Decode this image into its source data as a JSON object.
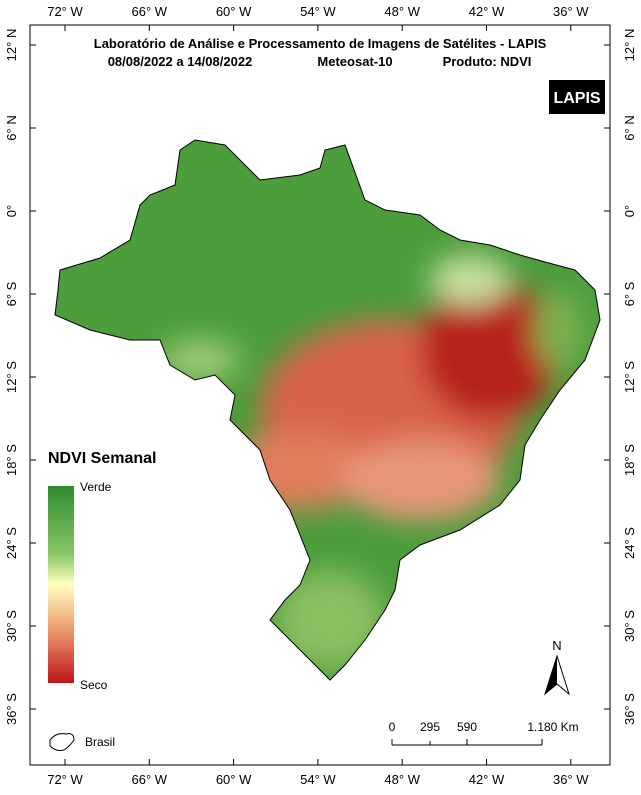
{
  "header": {
    "title": "Laboratório de Análise e Processamento de Imagens de Satélites - LAPIS",
    "period": "08/08/2022  a  14/08/2022",
    "satellite": "Meteosat-10",
    "product": "Produto: NDVI",
    "logo": "LAPIS"
  },
  "graticule": {
    "longitudes": [
      "72° W",
      "66° W",
      "60° W",
      "54° W",
      "48° W",
      "42° W",
      "36° W"
    ],
    "latitudes": [
      "12° N",
      "6° N",
      "0°",
      "6° S",
      "12° S",
      "18° S",
      "24° S",
      "30° S",
      "36° S"
    ]
  },
  "legend": {
    "title": "NDVI Semanal",
    "top": "Verde",
    "bottom": "Seco",
    "area": "Brasil"
  },
  "north": "N",
  "scale": {
    "labels": [
      "0",
      "295",
      "590",
      "1.180 Km"
    ]
  }
}
